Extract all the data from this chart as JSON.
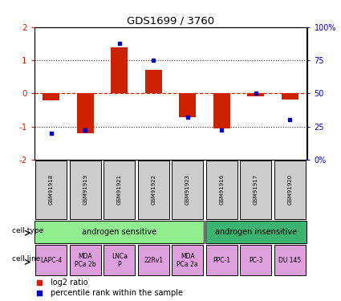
{
  "title": "GDS1699 / 3760",
  "samples": [
    "GSM91918",
    "GSM91919",
    "GSM91921",
    "GSM91922",
    "GSM91923",
    "GSM91916",
    "GSM91917",
    "GSM91920"
  ],
  "log2_ratio": [
    -0.22,
    -1.2,
    1.4,
    0.7,
    -0.72,
    -1.05,
    -0.08,
    -0.18
  ],
  "percentile_rank": [
    20,
    22,
    88,
    75,
    32,
    22,
    50,
    30
  ],
  "cell_type_groups": [
    {
      "label": "androgen sensitive",
      "start": 0,
      "end": 5,
      "color": "#90EE90"
    },
    {
      "label": "androgen insensitive",
      "start": 5,
      "end": 8,
      "color": "#3CB371"
    }
  ],
  "cell_lines": [
    {
      "label": "LAPC-4",
      "col": 0
    },
    {
      "label": "MDA\nPCa 2b",
      "col": 1
    },
    {
      "label": "LNCa\nP",
      "col": 2
    },
    {
      "label": "22Rv1",
      "col": 3
    },
    {
      "label": "MDA\nPCa 2a",
      "col": 4
    },
    {
      "label": "PPC-1",
      "col": 5
    },
    {
      "label": "PC-3",
      "col": 6
    },
    {
      "label": "DU 145",
      "col": 7
    }
  ],
  "cell_line_color": "#DDA0DD",
  "sample_box_color": "#CCCCCC",
  "bar_color": "#CC2200",
  "dot_color": "#0000CC",
  "ylim": [
    -2,
    2
  ],
  "dotted_line_color": "#333333",
  "zero_line_color": "#CC2200",
  "legend_red": "log2 ratio",
  "legend_blue": "percentile rank within the sample"
}
